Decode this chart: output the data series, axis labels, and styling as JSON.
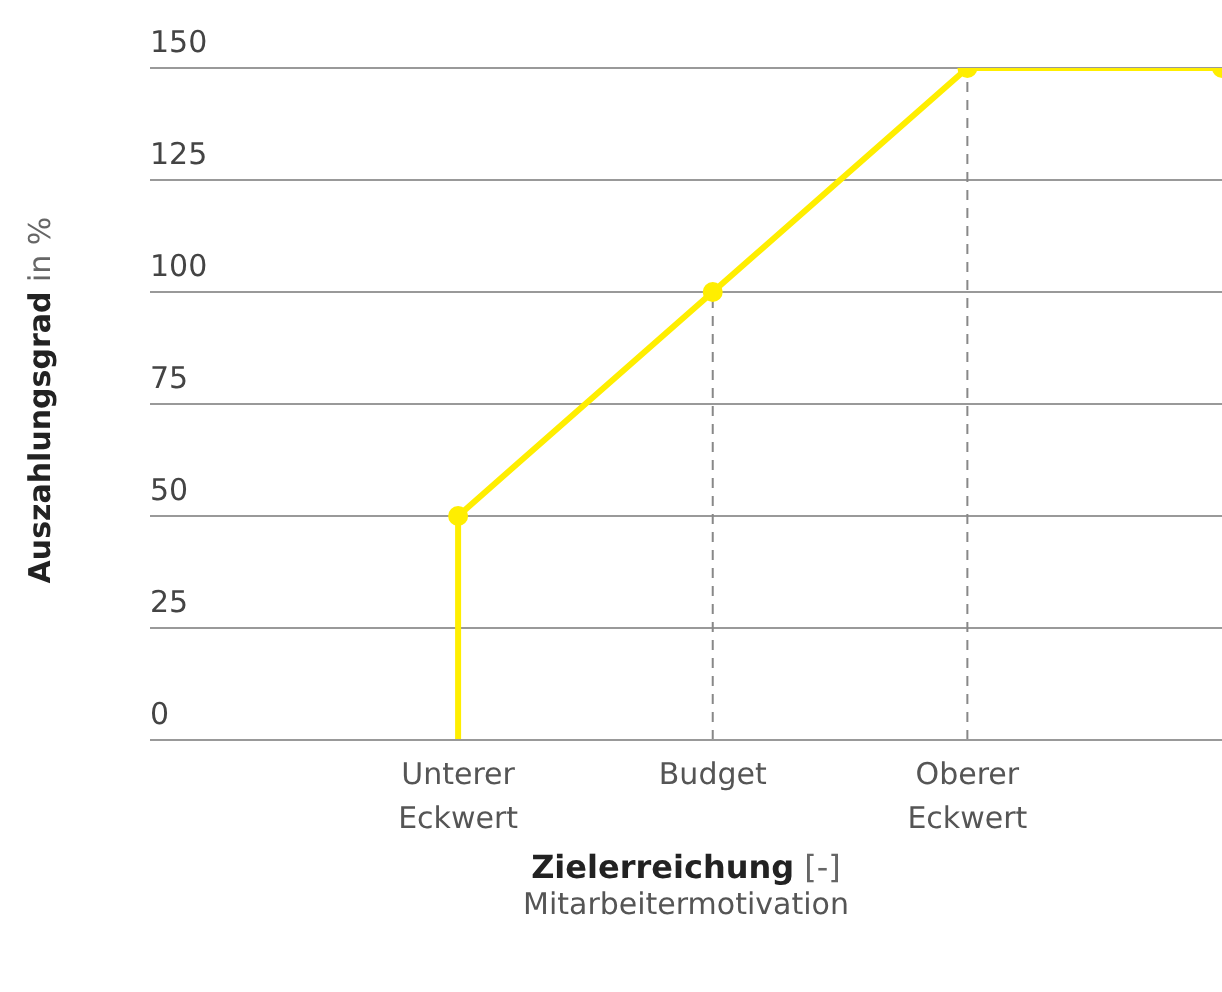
{
  "chart_data": {
    "type": "line",
    "ylabel": "Auszahlungsgrad in %",
    "xlabel": "Zielerreichung [-]",
    "annotations": [
      "Mitarbeitermotivation"
    ],
    "categories": [
      "Unterer Eckwert",
      "Budget",
      "Oberer Eckwert",
      null
    ],
    "series": [
      {
        "color": "#ffee00",
        "values": [
          50,
          100,
          150,
          150
        ],
        "marker": "circle"
      },
      {
        "color": "#ffee00",
        "x": [
          "Unterer Eckwert",
          "Unterer Eckwert"
        ],
        "values": [
          0,
          50
        ],
        "marker": "none"
      }
    ],
    "ylim": [
      0,
      150
    ],
    "yticks": [
      0,
      25,
      50,
      75,
      100,
      125,
      150
    ],
    "grid": "y",
    "legend": false,
    "ref_lines": [
      {
        "axis": "x",
        "value": "Budget",
        "color": "#888888",
        "line_style": "dashed"
      },
      {
        "axis": "x",
        "value": "Oberer Eckwert",
        "color": "#888888",
        "line_style": "dashed"
      }
    ]
  }
}
